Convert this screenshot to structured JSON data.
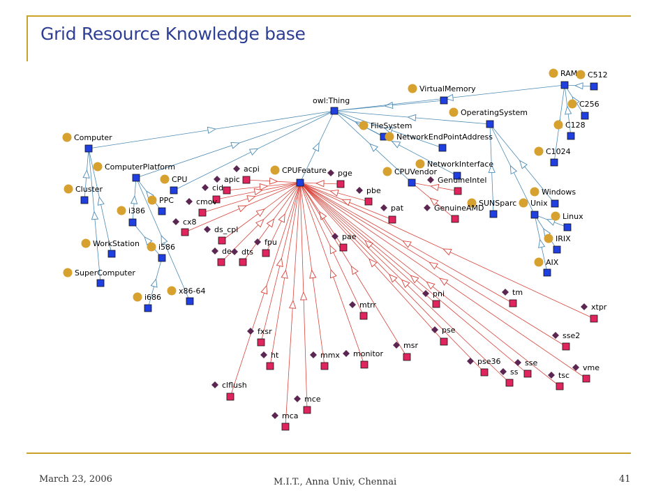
{
  "title": "Grid Resource Knowledge base",
  "footer": {
    "date": "March 23, 2006",
    "org": "M.I.T., Anna Univ, Chennai",
    "page": "41"
  },
  "colors": {
    "accent_rule": "#c9a227",
    "title": "#2e3f93",
    "class_node": "#1f3fe0",
    "individual_node": "#e0245e",
    "class_bullet": "#d6a12e",
    "individual_bullet": "#5c2653",
    "hierarchy_edge": "#4a8ab5",
    "property_edge": "#d9433a"
  },
  "nodes": [
    {
      "id": "owl:Thing",
      "label": "owl:Thing",
      "kind": "class"
    },
    {
      "id": "Computer",
      "label": "Computer",
      "kind": "class"
    },
    {
      "id": "ComputerPlatform",
      "label": "ComputerPlatform",
      "kind": "class"
    },
    {
      "id": "Cluster",
      "label": "Cluster",
      "kind": "class"
    },
    {
      "id": "WorkStation",
      "label": "WorkStation",
      "kind": "class"
    },
    {
      "id": "SuperComputer",
      "label": "SuperComputer",
      "kind": "class"
    },
    {
      "id": "CPU",
      "label": "CPU",
      "kind": "class"
    },
    {
      "id": "PPC",
      "label": "PPC",
      "kind": "class"
    },
    {
      "id": "i386",
      "label": "i386",
      "kind": "class"
    },
    {
      "id": "i586",
      "label": "i586",
      "kind": "class"
    },
    {
      "id": "i686",
      "label": "i686",
      "kind": "class"
    },
    {
      "id": "x86-64",
      "label": "x86-64",
      "kind": "class"
    },
    {
      "id": "CPUFeature",
      "label": "CPUFeature",
      "kind": "class"
    },
    {
      "id": "CPUVendor",
      "label": "CPUVendor",
      "kind": "class"
    },
    {
      "id": "FileSystem",
      "label": "FileSystem",
      "kind": "class"
    },
    {
      "id": "NetworkEndPointAddress",
      "label": "NetworkEndPointAddress",
      "kind": "class"
    },
    {
      "id": "NetworkInterface",
      "label": "NetworkInterface",
      "kind": "class"
    },
    {
      "id": "VirtualMemory",
      "label": "VirtualMemory",
      "kind": "class"
    },
    {
      "id": "OperatingSystem",
      "label": "OperatingSystem",
      "kind": "class"
    },
    {
      "id": "RAM",
      "label": "RAM",
      "kind": "class"
    },
    {
      "id": "C512",
      "label": "C512",
      "kind": "class"
    },
    {
      "id": "C256",
      "label": "C256",
      "kind": "class"
    },
    {
      "id": "C128",
      "label": "C128",
      "kind": "class"
    },
    {
      "id": "C1024",
      "label": "C1024",
      "kind": "class"
    },
    {
      "id": "Windows",
      "label": "Windows",
      "kind": "class"
    },
    {
      "id": "Unix",
      "label": "Unix",
      "kind": "class"
    },
    {
      "id": "Linux",
      "label": "Linux",
      "kind": "class"
    },
    {
      "id": "IRIX",
      "label": "IRIX",
      "kind": "class"
    },
    {
      "id": "AIX",
      "label": "AIX",
      "kind": "class"
    },
    {
      "id": "SUNSparc",
      "label": "SUNSparc",
      "kind": "class"
    },
    {
      "id": "GenuineIntel",
      "label": "GenuineIntel",
      "kind": "individual"
    },
    {
      "id": "GenuineAMD",
      "label": "GenuineAMD",
      "kind": "individual"
    },
    {
      "id": "acpi",
      "label": "acpi",
      "kind": "individual"
    },
    {
      "id": "apic",
      "label": "apic",
      "kind": "individual"
    },
    {
      "id": "cid",
      "label": "cid",
      "kind": "individual"
    },
    {
      "id": "cmov",
      "label": "cmov",
      "kind": "individual"
    },
    {
      "id": "cx8",
      "label": "cx8",
      "kind": "individual"
    },
    {
      "id": "ds_cpl",
      "label": "ds_cpl",
      "kind": "individual"
    },
    {
      "id": "de",
      "label": "de",
      "kind": "individual"
    },
    {
      "id": "dts",
      "label": "dts",
      "kind": "individual"
    },
    {
      "id": "fpu",
      "label": "fpu",
      "kind": "individual"
    },
    {
      "id": "pge",
      "label": "pge",
      "kind": "individual"
    },
    {
      "id": "pbe",
      "label": "pbe",
      "kind": "individual"
    },
    {
      "id": "pat",
      "label": "pat",
      "kind": "individual"
    },
    {
      "id": "pae",
      "label": "pae",
      "kind": "individual"
    },
    {
      "id": "mtrr",
      "label": "mtrr",
      "kind": "individual"
    },
    {
      "id": "pni",
      "label": "pni",
      "kind": "individual"
    },
    {
      "id": "tm",
      "label": "tm",
      "kind": "individual"
    },
    {
      "id": "xtpr",
      "label": "xtpr",
      "kind": "individual"
    },
    {
      "id": "fxsr",
      "label": "fxsr",
      "kind": "individual"
    },
    {
      "id": "pse",
      "label": "pse",
      "kind": "individual"
    },
    {
      "id": "sse2",
      "label": "sse2",
      "kind": "individual"
    },
    {
      "id": "msr",
      "label": "msr",
      "kind": "individual"
    },
    {
      "id": "ht",
      "label": "ht",
      "kind": "individual"
    },
    {
      "id": "mmx",
      "label": "mmx",
      "kind": "individual"
    },
    {
      "id": "monitor",
      "label": "monitor",
      "kind": "individual"
    },
    {
      "id": "pse36",
      "label": "pse36",
      "kind": "individual"
    },
    {
      "id": "sse",
      "label": "sse",
      "kind": "individual"
    },
    {
      "id": "vme",
      "label": "vme",
      "kind": "individual"
    },
    {
      "id": "ss",
      "label": "ss",
      "kind": "individual"
    },
    {
      "id": "tsc",
      "label": "tsc",
      "kind": "individual"
    },
    {
      "id": "clflush",
      "label": "clflush",
      "kind": "individual"
    },
    {
      "id": "mce",
      "label": "mce",
      "kind": "individual"
    },
    {
      "id": "mca",
      "label": "mca",
      "kind": "individual"
    }
  ],
  "edges": [
    {
      "from": "owl:Thing",
      "to": "Computer",
      "type": "subclass"
    },
    {
      "from": "owl:Thing",
      "to": "ComputerPlatform",
      "type": "subclass"
    },
    {
      "from": "owl:Thing",
      "to": "CPU",
      "type": "subclass"
    },
    {
      "from": "owl:Thing",
      "to": "CPUFeature",
      "type": "subclass"
    },
    {
      "from": "owl:Thing",
      "to": "FileSystem",
      "type": "subclass"
    },
    {
      "from": "owl:Thing",
      "to": "NetworkEndPointAddress",
      "type": "subclass"
    },
    {
      "from": "owl:Thing",
      "to": "NetworkInterface",
      "type": "subclass"
    },
    {
      "from": "owl:Thing",
      "to": "VirtualMemory",
      "type": "subclass"
    },
    {
      "from": "owl:Thing",
      "to": "OperatingSystem",
      "type": "subclass"
    },
    {
      "from": "owl:Thing",
      "to": "RAM",
      "type": "subclass"
    },
    {
      "from": "owl:Thing",
      "to": "CPUVendor",
      "type": "subclass"
    },
    {
      "from": "Computer",
      "to": "Cluster",
      "type": "subclass"
    },
    {
      "from": "Computer",
      "to": "WorkStation",
      "type": "subclass"
    },
    {
      "from": "Computer",
      "to": "SuperComputer",
      "type": "subclass"
    },
    {
      "from": "ComputerPlatform",
      "to": "i386",
      "type": "subclass"
    },
    {
      "from": "ComputerPlatform",
      "to": "PPC",
      "type": "subclass"
    },
    {
      "from": "ComputerPlatform",
      "to": "x86-64",
      "type": "subclass"
    },
    {
      "from": "i386",
      "to": "i586",
      "type": "subclass"
    },
    {
      "from": "i586",
      "to": "i686",
      "type": "subclass"
    },
    {
      "from": "RAM",
      "to": "C512",
      "type": "subclass"
    },
    {
      "from": "RAM",
      "to": "C256",
      "type": "subclass"
    },
    {
      "from": "RAM",
      "to": "C128",
      "type": "subclass"
    },
    {
      "from": "RAM",
      "to": "C1024",
      "type": "subclass"
    },
    {
      "from": "OperatingSystem",
      "to": "Windows",
      "type": "subclass"
    },
    {
      "from": "OperatingSystem",
      "to": "Unix",
      "type": "subclass"
    },
    {
      "from": "OperatingSystem",
      "to": "SUNSparc",
      "type": "subclass"
    },
    {
      "from": "Unix",
      "to": "Linux",
      "type": "subclass"
    },
    {
      "from": "Unix",
      "to": "IRIX",
      "type": "subclass"
    },
    {
      "from": "Unix",
      "to": "AIX",
      "type": "subclass"
    },
    {
      "from": "CPUVendor",
      "to": "GenuineIntel",
      "type": "instance"
    },
    {
      "from": "CPUVendor",
      "to": "GenuineAMD",
      "type": "instance"
    },
    {
      "from": "CPUFeature",
      "to": "acpi",
      "type": "instance"
    },
    {
      "from": "CPUFeature",
      "to": "apic",
      "type": "instance"
    },
    {
      "from": "CPUFeature",
      "to": "cid",
      "type": "instance"
    },
    {
      "from": "CPUFeature",
      "to": "cmov",
      "type": "instance"
    },
    {
      "from": "CPUFeature",
      "to": "cx8",
      "type": "instance"
    },
    {
      "from": "CPUFeature",
      "to": "ds_cpl",
      "type": "instance"
    },
    {
      "from": "CPUFeature",
      "to": "de",
      "type": "instance"
    },
    {
      "from": "CPUFeature",
      "to": "dts",
      "type": "instance"
    },
    {
      "from": "CPUFeature",
      "to": "fpu",
      "type": "instance"
    },
    {
      "from": "CPUFeature",
      "to": "pge",
      "type": "instance"
    },
    {
      "from": "CPUFeature",
      "to": "pbe",
      "type": "instance"
    },
    {
      "from": "CPUFeature",
      "to": "pat",
      "type": "instance"
    },
    {
      "from": "CPUFeature",
      "to": "pae",
      "type": "instance"
    },
    {
      "from": "CPUFeature",
      "to": "mtrr",
      "type": "instance"
    },
    {
      "from": "CPUFeature",
      "to": "pni",
      "type": "instance"
    },
    {
      "from": "CPUFeature",
      "to": "tm",
      "type": "instance"
    },
    {
      "from": "CPUFeature",
      "to": "xtpr",
      "type": "instance"
    },
    {
      "from": "CPUFeature",
      "to": "fxsr",
      "type": "instance"
    },
    {
      "from": "CPUFeature",
      "to": "pse",
      "type": "instance"
    },
    {
      "from": "CPUFeature",
      "to": "sse2",
      "type": "instance"
    },
    {
      "from": "CPUFeature",
      "to": "msr",
      "type": "instance"
    },
    {
      "from": "CPUFeature",
      "to": "ht",
      "type": "instance"
    },
    {
      "from": "CPUFeature",
      "to": "mmx",
      "type": "instance"
    },
    {
      "from": "CPUFeature",
      "to": "monitor",
      "type": "instance"
    },
    {
      "from": "CPUFeature",
      "to": "pse36",
      "type": "instance"
    },
    {
      "from": "CPUFeature",
      "to": "sse",
      "type": "instance"
    },
    {
      "from": "CPUFeature",
      "to": "vme",
      "type": "instance"
    },
    {
      "from": "CPUFeature",
      "to": "ss",
      "type": "instance"
    },
    {
      "from": "CPUFeature",
      "to": "tsc",
      "type": "instance"
    },
    {
      "from": "CPUFeature",
      "to": "clflush",
      "type": "instance"
    },
    {
      "from": "CPUFeature",
      "to": "mce",
      "type": "instance"
    },
    {
      "from": "CPUFeature",
      "to": "mca",
      "type": "instance"
    }
  ]
}
